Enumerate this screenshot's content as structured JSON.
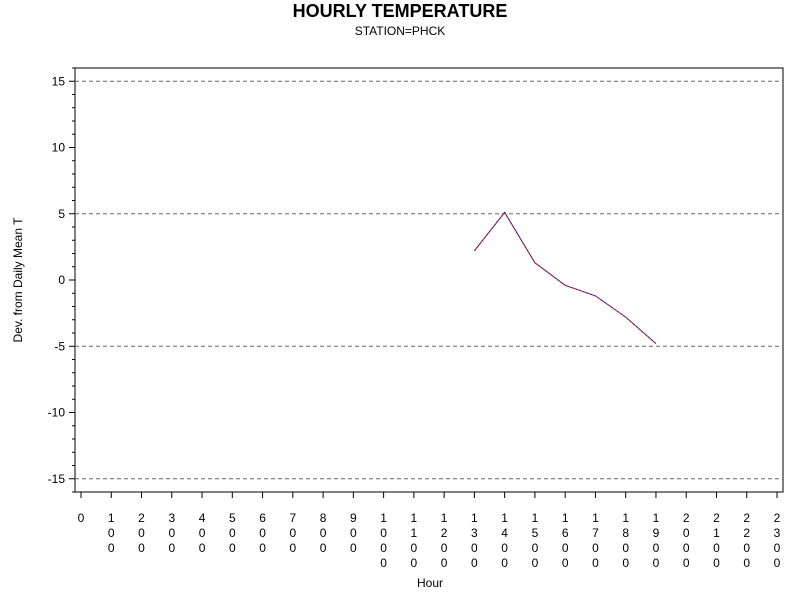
{
  "chart_data": {
    "type": "line",
    "title": "HOURLY TEMPERATURE",
    "subtitle": "STATION=PHCK",
    "xlabel": "Hour",
    "ylabel": "Dev. from Daily Mean T",
    "xlim": [
      0,
      2300
    ],
    "ylim": [
      -16,
      16
    ],
    "x_ticks": [
      0,
      100,
      200,
      300,
      400,
      500,
      600,
      700,
      800,
      900,
      1000,
      1100,
      1200,
      1300,
      1400,
      1500,
      1600,
      1700,
      1800,
      1900,
      2000,
      2100,
      2200,
      2300
    ],
    "y_ticks": [
      15,
      10,
      5,
      0,
      -5,
      -10,
      -15
    ],
    "reference_lines": [
      15,
      5,
      -5,
      -15
    ],
    "grid": false,
    "series": [
      {
        "color": "#cc0000",
        "x": [
          1300,
          1400,
          1500,
          1600,
          1700,
          1800,
          1900
        ],
        "y": [
          2.2,
          5.1,
          1.3,
          -0.4,
          -1.2,
          -2.8,
          -4.8
        ]
      },
      {
        "color": "#1a2fbf",
        "x": [
          1300,
          1400,
          1500,
          1600,
          1700,
          1800,
          1900
        ],
        "y": [
          2.2,
          5.1,
          1.3,
          -0.4,
          -1.2,
          -2.8,
          -4.8
        ]
      }
    ]
  }
}
